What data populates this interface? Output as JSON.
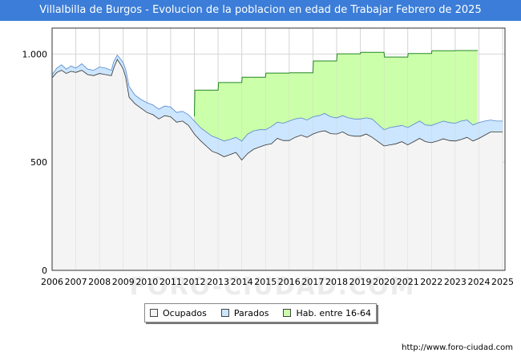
{
  "chart_data": {
    "type": "area",
    "title": "Villalbilla de Burgos - Evolucion de la poblacion en edad de Trabajar Febrero de 2025",
    "xlabel": "",
    "ylabel": "",
    "xlim": [
      2006,
      2025.1
    ],
    "ylim": [
      0,
      1120
    ],
    "y_ticks": [
      0,
      500,
      1000
    ],
    "y_tick_labels": [
      "0",
      "500",
      "1.000"
    ],
    "x_ticks": [
      2006,
      2007,
      2008,
      2009,
      2010,
      2011,
      2012,
      2013,
      2014,
      2015,
      2016,
      2017,
      2018,
      2019,
      2020,
      2021,
      2022,
      2023,
      2024,
      2025
    ],
    "x_tick_labels": [
      "2006",
      "2007",
      "2008",
      "2009",
      "2010",
      "2011",
      "2012",
      "2013",
      "2014",
      "2015",
      "2016",
      "2017",
      "2018",
      "2019",
      "2020",
      "2021",
      "2022",
      "2023",
      "2024",
      "2025"
    ],
    "grid": true,
    "legend_position": "bottom",
    "series": [
      {
        "name": "Hab. entre 16-64",
        "color": "#ccffaa",
        "line_color": "#228822",
        "x": [
          2012.0,
          2012.02,
          2013.0,
          2013.02,
          2014.0,
          2014.02,
          2015.0,
          2015.02,
          2016.0,
          2016.02,
          2017.0,
          2017.02,
          2018.0,
          2018.02,
          2019.0,
          2019.02,
          2020.0,
          2020.02,
          2021.0,
          2021.02,
          2022.0,
          2022.02,
          2023.0,
          2023.02,
          2023.95
        ],
        "values": [
          712,
          833,
          833,
          868,
          868,
          893,
          893,
          912,
          912,
          913,
          913,
          968,
          968,
          1001,
          1001,
          1008,
          1008,
          986,
          986,
          1002,
          1002,
          1015,
          1015,
          1016,
          1016
        ]
      },
      {
        "name": "Parados",
        "color": "#cce6ff",
        "line_color": "#5588cc",
        "x": [
          2006.0,
          2006.2,
          2006.4,
          2006.6,
          2006.8,
          2007.0,
          2007.25,
          2007.5,
          2007.75,
          2008.0,
          2008.25,
          2008.5,
          2008.6,
          2008.75,
          2008.9,
          2009.0,
          2009.1,
          2009.25,
          2009.5,
          2009.75,
          2010.0,
          2010.25,
          2010.5,
          2010.75,
          2011.0,
          2011.25,
          2011.5,
          2011.75,
          2012.0,
          2012.25,
          2012.5,
          2012.75,
          2013.0,
          2013.25,
          2013.5,
          2013.75,
          2014.0,
          2014.25,
          2014.5,
          2014.75,
          2015.0,
          2015.25,
          2015.5,
          2015.75,
          2016.0,
          2016.25,
          2016.5,
          2016.75,
          2017.0,
          2017.25,
          2017.5,
          2017.75,
          2018.0,
          2018.25,
          2018.5,
          2018.75,
          2019.0,
          2019.25,
          2019.5,
          2019.75,
          2020.0,
          2020.25,
          2020.5,
          2020.75,
          2021.0,
          2021.25,
          2021.5,
          2021.75,
          2022.0,
          2022.25,
          2022.5,
          2022.75,
          2023.0,
          2023.25,
          2023.5,
          2023.75,
          2024.0,
          2024.25,
          2024.5,
          2024.75,
          2025.0
        ],
        "values": [
          905,
          935,
          950,
          930,
          945,
          935,
          955,
          930,
          925,
          940,
          935,
          925,
          965,
          995,
          975,
          960,
          930,
          850,
          810,
          790,
          775,
          765,
          745,
          760,
          755,
          730,
          735,
          720,
          690,
          660,
          640,
          620,
          610,
          598,
          605,
          615,
          598,
          630,
          645,
          650,
          650,
          665,
          685,
          680,
          690,
          700,
          705,
          695,
          710,
          715,
          725,
          710,
          705,
          715,
          705,
          700,
          700,
          705,
          700,
          675,
          650,
          660,
          665,
          670,
          660,
          675,
          690,
          672,
          670,
          680,
          690,
          683,
          680,
          690,
          695,
          672,
          683,
          690,
          695,
          690,
          690
        ]
      },
      {
        "name": "Ocupados",
        "color": "#f4f4f4",
        "line_color": "#333333",
        "x": [
          2006.0,
          2006.2,
          2006.4,
          2006.6,
          2006.8,
          2007.0,
          2007.25,
          2007.5,
          2007.75,
          2008.0,
          2008.25,
          2008.5,
          2008.6,
          2008.75,
          2008.9,
          2009.0,
          2009.1,
          2009.25,
          2009.5,
          2009.75,
          2010.0,
          2010.25,
          2010.5,
          2010.75,
          2011.0,
          2011.25,
          2011.5,
          2011.75,
          2012.0,
          2012.25,
          2012.5,
          2012.75,
          2013.0,
          2013.25,
          2013.5,
          2013.75,
          2014.0,
          2014.25,
          2014.5,
          2014.75,
          2015.0,
          2015.25,
          2015.5,
          2015.75,
          2016.0,
          2016.25,
          2016.5,
          2016.75,
          2017.0,
          2017.25,
          2017.5,
          2017.75,
          2018.0,
          2018.25,
          2018.5,
          2018.75,
          2019.0,
          2019.25,
          2019.5,
          2019.75,
          2020.0,
          2020.25,
          2020.5,
          2020.75,
          2021.0,
          2021.25,
          2021.5,
          2021.75,
          2022.0,
          2022.25,
          2022.5,
          2022.75,
          2023.0,
          2023.25,
          2023.5,
          2023.75,
          2024.0,
          2024.25,
          2024.5,
          2024.75,
          2025.0
        ],
        "values": [
          890,
          915,
          925,
          910,
          920,
          915,
          925,
          905,
          900,
          910,
          905,
          900,
          935,
          975,
          950,
          930,
          895,
          800,
          770,
          750,
          730,
          720,
          700,
          715,
          710,
          685,
          690,
          670,
          630,
          600,
          575,
          550,
          540,
          525,
          535,
          545,
          510,
          540,
          560,
          570,
          580,
          585,
          610,
          600,
          600,
          615,
          625,
          615,
          630,
          640,
          645,
          632,
          630,
          640,
          625,
          620,
          620,
          630,
          615,
          595,
          575,
          580,
          585,
          595,
          580,
          595,
          610,
          595,
          590,
          598,
          608,
          600,
          598,
          605,
          615,
          598,
          610,
          625,
          640,
          640,
          640
        ]
      }
    ],
    "watermark": "FORO-CIUDAD.COM",
    "source_credit": "http://www.foro-ciudad.com"
  }
}
